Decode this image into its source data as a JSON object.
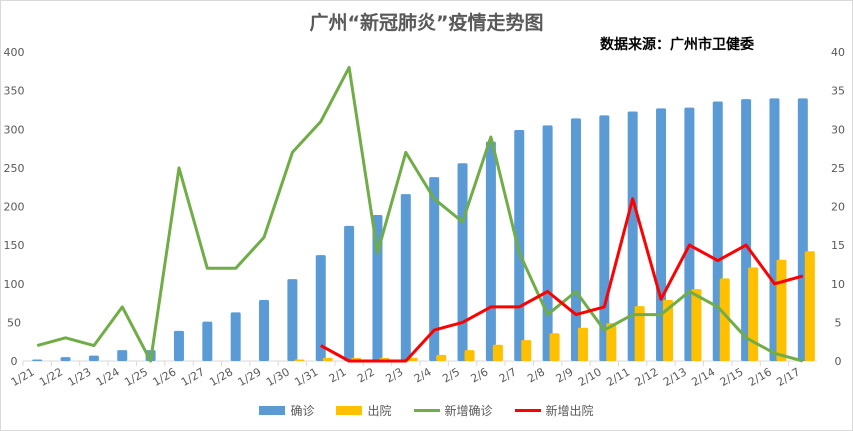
{
  "chart_data": {
    "type": "bar+line",
    "title": "广州“新冠肺炎”疫情走势图",
    "source_note": "数据来源：广州市卫健委",
    "categories": [
      "1/21",
      "1/22",
      "1/23",
      "1/24",
      "1/25",
      "1/26",
      "1/27",
      "1/28",
      "1/29",
      "1/30",
      "1/31",
      "2/1",
      "2/2",
      "2/3",
      "2/4",
      "2/5",
      "2/6",
      "2/7",
      "2/8",
      "2/9",
      "2/10",
      "2/11",
      "2/12",
      "2/13",
      "2/14",
      "2/15",
      "2/16",
      "2/17"
    ],
    "left_axis": {
      "ylim": [
        0,
        400
      ],
      "ticks": [
        "0",
        "50",
        "100",
        "150",
        "200",
        "250",
        "300",
        "350",
        "400"
      ]
    },
    "right_axis": {
      "ylim": [
        0,
        40
      ],
      "ticks": [
        "0",
        "5",
        "10",
        "15",
        "20",
        "25",
        "30",
        "35",
        "40"
      ]
    },
    "series": [
      {
        "name": "确诊",
        "kind": "bar",
        "axis": "left",
        "color": "#5b9bd5",
        "values": [
          2,
          5,
          7,
          14,
          14,
          39,
          51,
          63,
          79,
          106,
          137,
          175,
          189,
          216,
          238,
          256,
          284,
          299,
          305,
          314,
          318,
          323,
          327,
          328,
          336,
          339,
          340,
          340
        ]
      },
      {
        "name": "出院",
        "kind": "bar",
        "axis": "left",
        "color": "#ffc000",
        "values": [
          0,
          0,
          0,
          0,
          0,
          0,
          0,
          0,
          0,
          2,
          4,
          4,
          4,
          4,
          8,
          14,
          21,
          27,
          36,
          43,
          49,
          71,
          79,
          93,
          107,
          121,
          131,
          142
        ]
      },
      {
        "name": "新增确诊",
        "kind": "line",
        "axis": "right",
        "color": "#70ad47",
        "values": [
          2,
          3,
          2,
          7,
          0,
          25,
          12,
          12,
          16,
          27,
          31,
          38,
          14,
          27,
          21,
          18,
          29,
          14,
          6,
          9,
          4,
          6,
          6,
          9,
          7,
          3,
          1,
          0
        ]
      },
      {
        "name": "新增出院",
        "kind": "line",
        "axis": "right",
        "color": "#ff0000",
        "values": [
          null,
          null,
          null,
          null,
          null,
          null,
          null,
          null,
          null,
          null,
          2,
          0,
          0,
          0,
          4,
          5,
          7,
          7,
          9,
          6,
          7,
          21,
          8,
          15,
          13,
          15,
          10,
          11
        ]
      }
    ],
    "legend_position": "bottom",
    "grid": false
  }
}
